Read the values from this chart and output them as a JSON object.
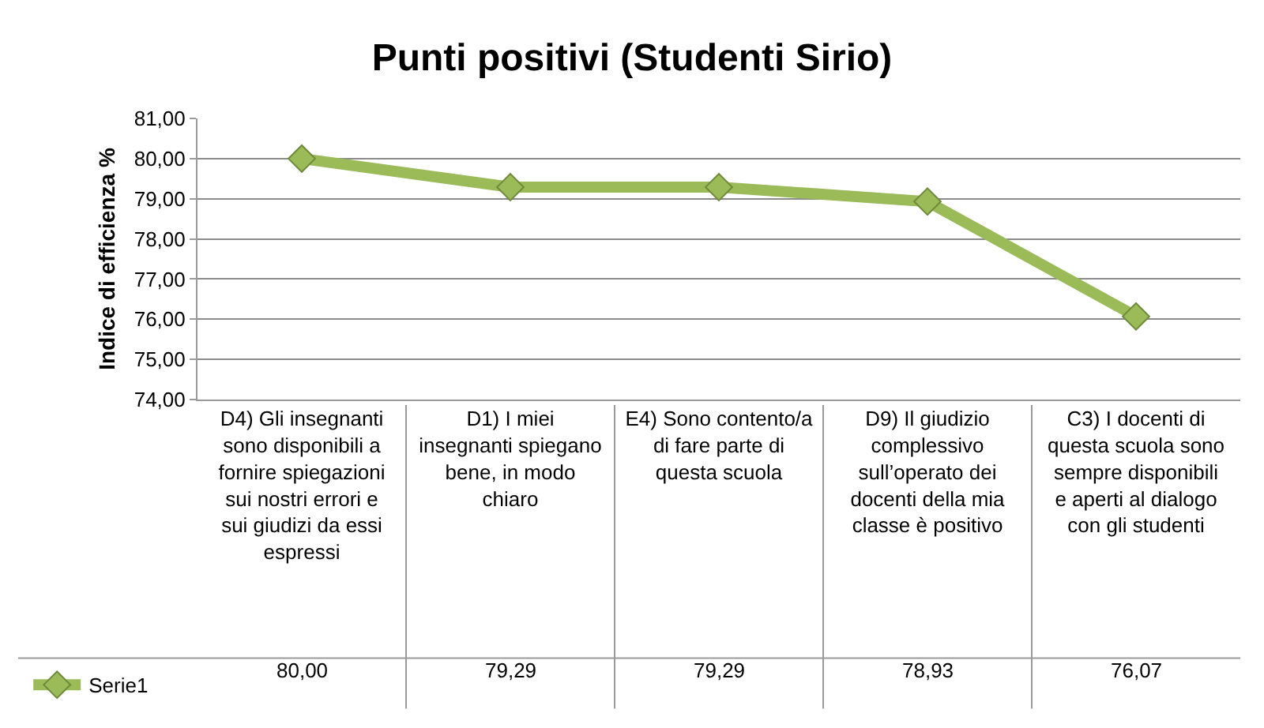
{
  "chart_data": {
    "type": "line",
    "title": "Punti positivi (Studenti Sirio)",
    "ylabel": "Indice di efficienza %",
    "categories": [
      "D4) Gli insegnanti sono disponibili a fornire spiegazioni sui nostri errori e sui giudizi da essi espressi",
      "D1) I miei insegnanti spiegano bene, in modo chiaro",
      "E4) Sono contento/a di fare parte di questa scuola",
      "D9) Il giudizio complessivo sull’operato dei docenti della mia classe è positivo",
      "C3) I docenti di questa scuola sono sempre disponibili e aperti al dialogo con gli studenti"
    ],
    "series": [
      {
        "name": "Serie1",
        "color": "#9bbb59",
        "values": [
          80.0,
          79.29,
          79.29,
          78.93,
          76.07
        ],
        "value_labels": [
          "80,00",
          "79,29",
          "79,29",
          "78,93",
          "76,07"
        ]
      }
    ],
    "ylim": [
      74,
      81
    ],
    "yticks": [
      {
        "value": 74,
        "label": "74,00"
      },
      {
        "value": 75,
        "label": "75,00"
      },
      {
        "value": 76,
        "label": "76,00"
      },
      {
        "value": 77,
        "label": "77,00"
      },
      {
        "value": 78,
        "label": "78,00"
      },
      {
        "value": 79,
        "label": "79,00"
      },
      {
        "value": 80,
        "label": "80,00"
      },
      {
        "value": 81,
        "label": "81,00"
      }
    ],
    "grid": "y",
    "legend": "bottom left",
    "marker": "diamond",
    "line_style": "solid"
  }
}
